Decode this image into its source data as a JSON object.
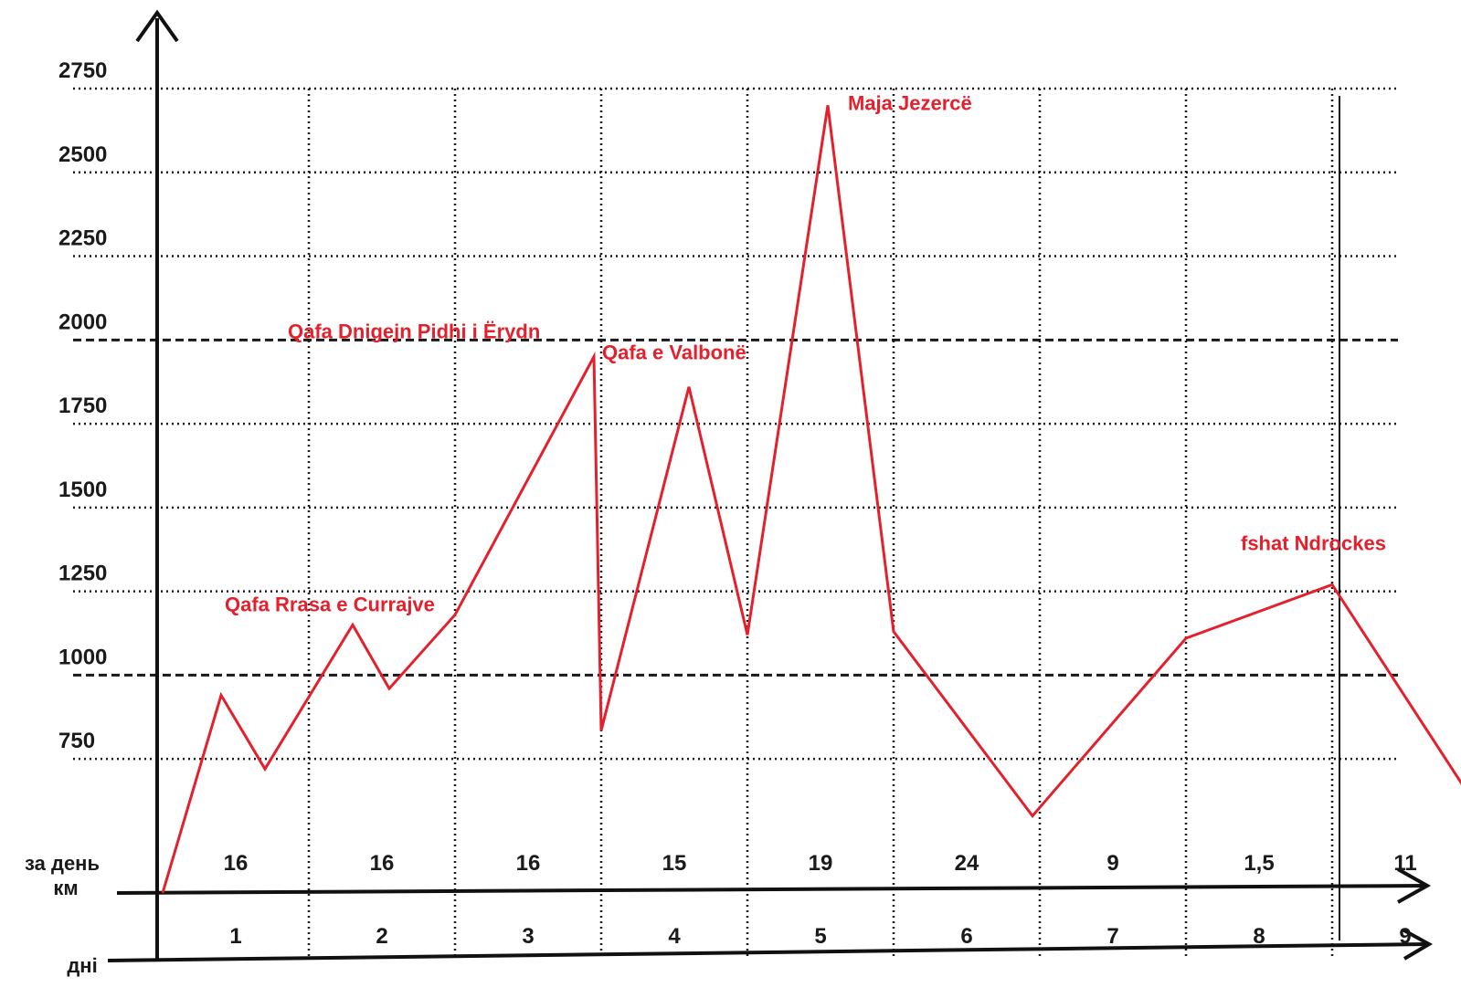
{
  "chart_data": {
    "type": "line",
    "title": "",
    "xlabel": "",
    "ylabel": "",
    "y_ticks": [
      750,
      1000,
      1250,
      1500,
      1750,
      2000,
      2250,
      2500,
      2750
    ],
    "ylim": [
      350,
      2750
    ],
    "reference_lines": [
      1000,
      2000
    ],
    "grid": true,
    "row_labels": {
      "km_per_day": "за день\nкм",
      "days": "дні"
    },
    "km_per_day": [
      "16",
      "16",
      "16",
      "15",
      "19",
      "24",
      "9",
      "1,5",
      "11"
    ],
    "days": [
      "1",
      "2",
      "3",
      "4",
      "5",
      "6",
      "7",
      "8",
      "9"
    ],
    "series": [
      {
        "color": "#e3202b",
        "points": [
          {
            "day": 0.0,
            "elev": 350
          },
          {
            "day": 0.4,
            "elev": 940
          },
          {
            "day": 0.7,
            "elev": 720
          },
          {
            "day": 1.3,
            "elev": 1150
          },
          {
            "day": 1.55,
            "elev": 960
          },
          {
            "day": 2.0,
            "elev": 1180
          },
          {
            "day": 2.95,
            "elev": 1950
          },
          {
            "day": 3.0,
            "elev": 835
          },
          {
            "day": 3.6,
            "elev": 1860
          },
          {
            "day": 4.0,
            "elev": 1120
          },
          {
            "day": 4.55,
            "elev": 2700
          },
          {
            "day": 5.0,
            "elev": 1130
          },
          {
            "day": 5.95,
            "elev": 580
          },
          {
            "day": 7.0,
            "elev": 1110
          },
          {
            "day": 8.0,
            "elev": 1270
          },
          {
            "day": 9.0,
            "elev": 600
          }
        ]
      }
    ],
    "annotations": [
      {
        "text": "Qafa Rrasa e  Currajve",
        "day": 1.3,
        "elev": 1150
      },
      {
        "text": "Qafa Dnigejn Pidhi i Ërydn",
        "day": 2.95,
        "elev": 1950
      },
      {
        "text": "Qafa e Valbonë",
        "day": 3.6,
        "elev": 1860
      },
      {
        "text": "Maja Jezercë",
        "day": 4.55,
        "elev": 2700
      },
      {
        "text": "fshat Ndrockes",
        "day": 8.0,
        "elev": 1270
      }
    ]
  }
}
